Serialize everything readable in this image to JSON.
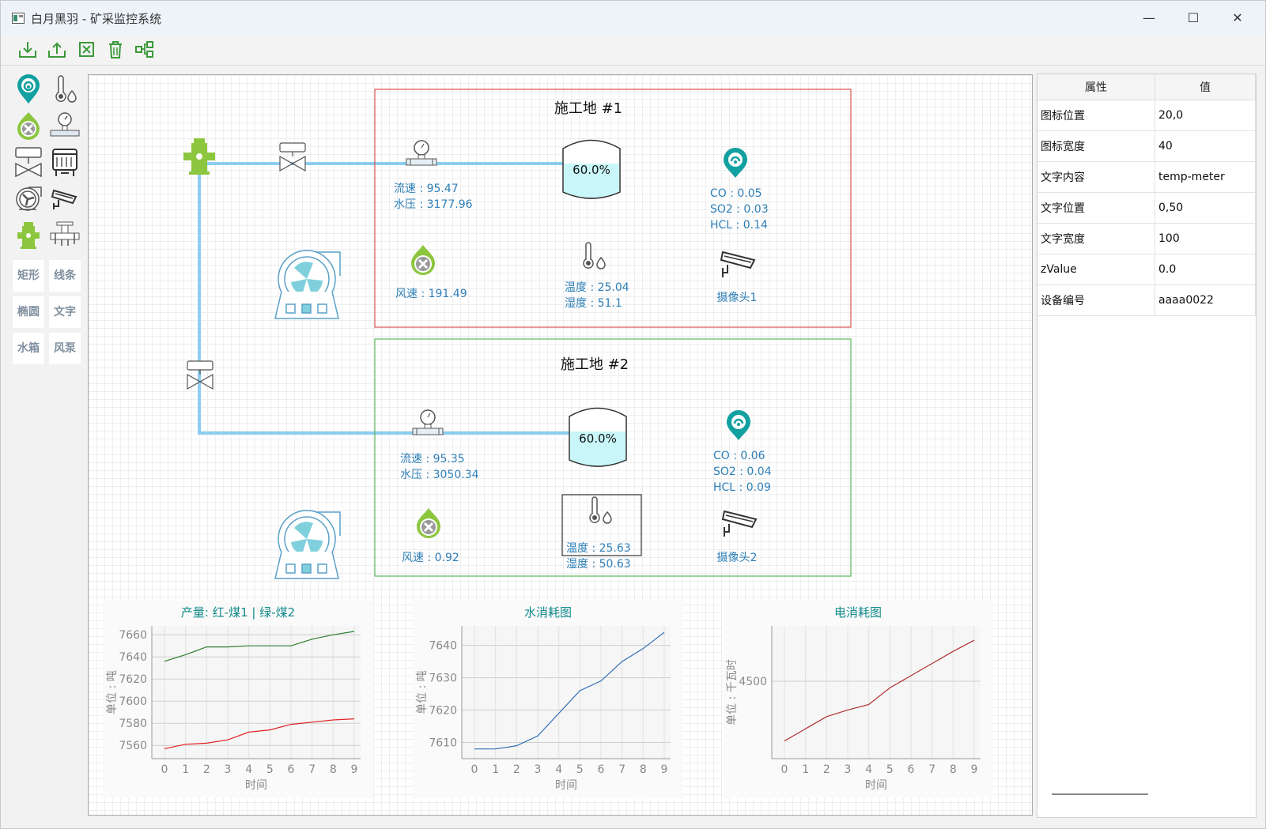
{
  "window": {
    "title": "白月黑羽 - 矿采监控系统"
  },
  "toolbar": [
    "import-icon",
    "export-icon",
    "clear-icon",
    "delete-icon",
    "group-icon"
  ],
  "toolbox": {
    "icons": [
      "gas-sensor-icon",
      "thermometer-icon",
      "fan-sensor-icon",
      "flow-meter-icon",
      "valve-icon",
      "water-tank-icon",
      "blower-icon",
      "camera-icon",
      "hydrant-icon",
      "pipe-joint-icon"
    ],
    "text_tools": [
      "矩形",
      "线条",
      "椭圆",
      "文字",
      "水箱",
      "风泵"
    ]
  },
  "properties": {
    "headers": [
      "属性",
      "值"
    ],
    "rows": [
      {
        "name": "图标位置",
        "value": "20,0"
      },
      {
        "name": "图标宽度",
        "value": "40"
      },
      {
        "name": "文字内容",
        "value": "temp-meter"
      },
      {
        "name": "文字位置",
        "value": "0,50"
      },
      {
        "name": "文字宽度",
        "value": "100"
      },
      {
        "name": "zValue",
        "value": "0.0"
      },
      {
        "name": "设备编号",
        "value": "aaaa0022"
      }
    ]
  },
  "sites": [
    {
      "title": "施工地 #1",
      "border_color": "#d9534f",
      "flow": "流速 : 95.47",
      "pressure": "水压 : 3177.96",
      "tank_level": "60.0%",
      "co": "CO : 0.05",
      "so2": "SO2 : 0.03",
      "hcl": "HCL : 0.14",
      "wind": "风速 : 191.49",
      "temp": "温度 : 25.04",
      "humidity": "湿度 : 51.1",
      "camera": "摄像头1"
    },
    {
      "title": "施工地 #2",
      "border_color": "#5cb85c",
      "flow": "流速 : 95.35",
      "pressure": "水压 : 3050.34",
      "tank_level": "60.0%",
      "co": "CO : 0.06",
      "so2": "SO2 : 0.04",
      "hcl": "HCL : 0.09",
      "wind": "风速 : 0.92",
      "temp": "温度 : 25.63",
      "humidity": "湿度 : 50.63",
      "camera": "摄像头2"
    }
  ],
  "colors": {
    "pipe": "#8ccdf0",
    "accent": "#12a0a0",
    "label": "#2e7fb8",
    "hydrant": "#8cc63f"
  },
  "chart_data": [
    {
      "type": "line",
      "title": "产量: 红-煤1 | 绿-煤2",
      "xlabel": "时间",
      "ylabel": "单位 : 吨",
      "x": [
        0,
        1,
        2,
        3,
        4,
        5,
        6,
        7,
        8,
        9
      ],
      "ylim": [
        7548,
        7668
      ],
      "yticks": [
        7560,
        7580,
        7600,
        7620,
        7640,
        7660
      ],
      "grid": true,
      "series": [
        {
          "color": "#e02020",
          "values": [
            7557,
            7561,
            7562,
            7565,
            7572,
            7574,
            7579,
            7581,
            7583,
            7584
          ]
        },
        {
          "color": "#2e7d32",
          "values": [
            7636,
            7642,
            7649,
            7649,
            7650,
            7650,
            7650,
            7656,
            7660,
            7663
          ]
        }
      ]
    },
    {
      "type": "line",
      "title": "水消耗图",
      "xlabel": "时间",
      "ylabel": "单位 : 吨",
      "x": [
        0,
        1,
        2,
        3,
        4,
        5,
        6,
        7,
        8,
        9
      ],
      "ylim": [
        7605,
        7646
      ],
      "yticks": [
        7610,
        7620,
        7630,
        7640
      ],
      "grid": true,
      "series": [
        {
          "color": "#2f6db5",
          "values": [
            7608,
            7608,
            7609,
            7612,
            7619,
            7626,
            7629,
            7635,
            7639,
            7644
          ]
        }
      ]
    },
    {
      "type": "line",
      "title": "电消耗图",
      "xlabel": "时间",
      "ylabel": "单位 : 千瓦时",
      "x": [
        0,
        1,
        2,
        3,
        4,
        5,
        6,
        7,
        8,
        9
      ],
      "ylim": [
        4430,
        4550
      ],
      "yticks": [
        4500
      ],
      "grid": true,
      "series": [
        {
          "color": "#b03030",
          "values": [
            4446,
            4457,
            4468,
            4474,
            4479,
            4494,
            4505,
            4516,
            4527,
            4537
          ]
        }
      ]
    }
  ]
}
